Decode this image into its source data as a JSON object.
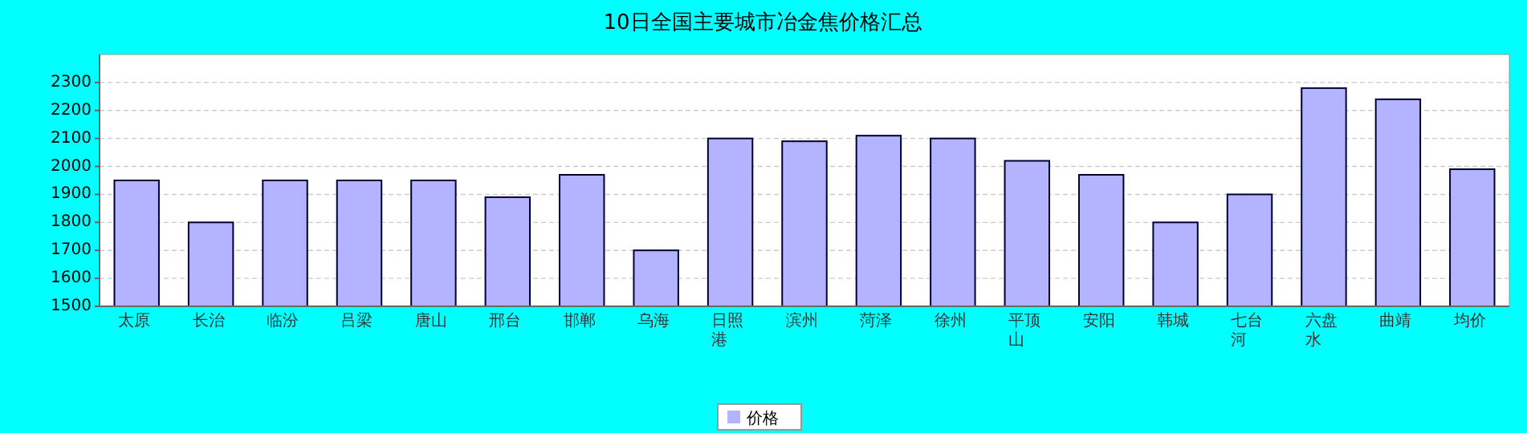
{
  "chart_data": {
    "type": "bar",
    "title": "10日全国主要城市冶金焦价格汇总",
    "categories": [
      "太原",
      "长治",
      "临汾",
      "吕梁",
      "唐山",
      "邢台",
      "邯郸",
      "乌海",
      "日照港",
      "滨州",
      "菏泽",
      "徐州",
      "平顶山",
      "安阳",
      "韩城",
      "七台河",
      "六盘水",
      "曲靖",
      "均价"
    ],
    "series": [
      {
        "name": "价格",
        "color": "#b3b3ff",
        "values": [
          1950,
          1800,
          1950,
          1950,
          1950,
          1890,
          1970,
          1700,
          2100,
          2090,
          2110,
          2100,
          2020,
          1970,
          1800,
          1900,
          2280,
          2240,
          1990
        ]
      }
    ],
    "ylim": [
      1500,
      2400
    ],
    "yticks": [
      1500,
      1600,
      1700,
      1800,
      1900,
      2000,
      2100,
      2200,
      2300
    ],
    "grid": "y",
    "legend": "bottom"
  }
}
